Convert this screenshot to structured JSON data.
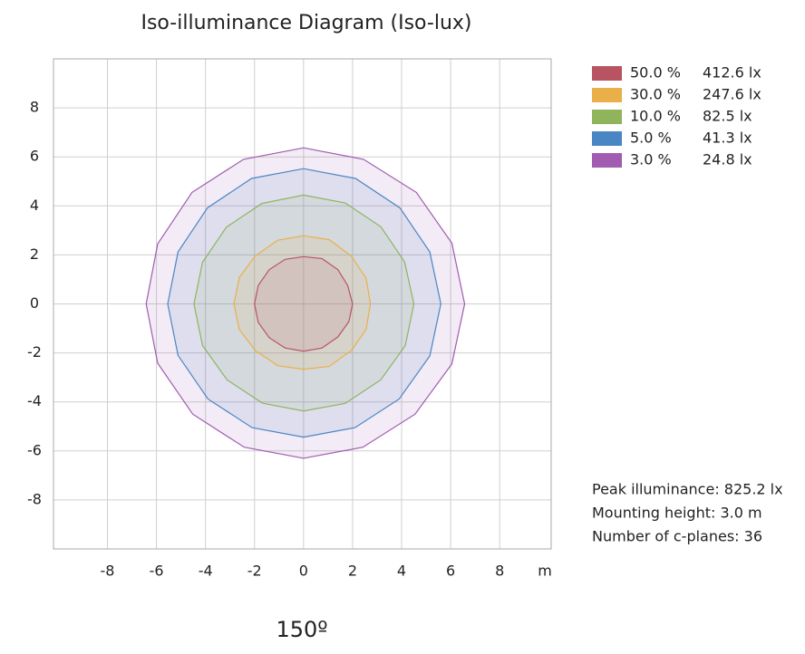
{
  "chart_data": {
    "type": "contour",
    "title": "Iso-illuminance Diagram (Iso-lux)",
    "x_unit_label": "m",
    "xlim": [
      -10.2,
      10.1
    ],
    "ylim": [
      -10,
      10
    ],
    "xticks": [
      -8,
      -6,
      -4,
      -2,
      0,
      2,
      4,
      6,
      8
    ],
    "yticks": [
      -8,
      -6,
      -4,
      -2,
      0,
      2,
      4,
      6,
      8
    ],
    "grid": true,
    "series": [
      {
        "name": "50.0 %",
        "label": "412.6 lx",
        "color": "#b85462",
        "x": [
          2.0,
          1.8,
          1.4,
          0.75,
          0,
          -0.75,
          -1.4,
          -1.85,
          -2.0,
          -1.85,
          -1.4,
          -0.75,
          0,
          0.75,
          1.4,
          1.85
        ],
        "y": [
          0,
          0.75,
          1.4,
          1.85,
          1.93,
          1.82,
          1.4,
          0.75,
          0,
          -0.75,
          -1.38,
          -1.8,
          -1.93,
          -1.8,
          -1.35,
          -0.72
        ]
      },
      {
        "name": "30.0 %",
        "label": "247.6 lx",
        "color": "#e9b04a",
        "x": [
          2.73,
          2.55,
          1.95,
          1.05,
          0,
          -1.05,
          -1.98,
          -2.62,
          -2.84,
          -2.62,
          -1.95,
          -1.05,
          0,
          1.05,
          1.95,
          2.55
        ],
        "y": [
          0,
          1.05,
          1.95,
          2.62,
          2.78,
          2.6,
          1.95,
          1.08,
          0,
          -1.05,
          -1.92,
          -2.52,
          -2.67,
          -2.55,
          -1.9,
          -1.05
        ]
      },
      {
        "name": "10.0 %",
        "label": "82.5 lx",
        "color": "#8fb45c",
        "x": [
          4.5,
          4.12,
          3.15,
          1.7,
          0,
          -1.7,
          -3.15,
          -4.12,
          -4.47,
          -4.12,
          -3.12,
          -1.68,
          0,
          1.7,
          3.15,
          4.15
        ],
        "y": [
          0,
          1.72,
          3.15,
          4.12,
          4.44,
          4.1,
          3.13,
          1.7,
          0,
          -1.7,
          -3.1,
          -4.05,
          -4.37,
          -4.06,
          -3.1,
          -1.7
        ]
      },
      {
        "name": "5.0 %",
        "label": "41.3 lx",
        "color": "#4a86c4",
        "x": [
          5.6,
          5.15,
          3.93,
          2.12,
          0,
          -2.12,
          -3.92,
          -5.12,
          -5.54,
          -5.12,
          -3.9,
          -2.1,
          0,
          2.1,
          3.9,
          5.15
        ],
        "y": [
          0,
          2.12,
          3.92,
          5.12,
          5.52,
          5.12,
          3.92,
          2.12,
          0,
          -2.1,
          -3.88,
          -5.05,
          -5.44,
          -5.05,
          -3.88,
          -2.12
        ]
      },
      {
        "name": "3.0 %",
        "label": "24.8 lx",
        "color": "#a05cb0",
        "x": [
          6.57,
          6.05,
          4.6,
          2.45,
          0,
          -2.45,
          -4.55,
          -5.95,
          -6.42,
          -5.95,
          -4.52,
          -2.42,
          0,
          2.42,
          4.55,
          6.05
        ],
        "y": [
          0,
          2.48,
          4.55,
          5.9,
          6.37,
          5.9,
          4.55,
          2.45,
          0,
          -2.42,
          -4.5,
          -5.85,
          -6.3,
          -5.85,
          -4.5,
          -2.45
        ]
      }
    ],
    "notes": [
      "Peak illuminance: 825.2 lx",
      "Mounting height: 3.0 m",
      "Number of c-planes: 36"
    ],
    "caption": "150º"
  }
}
